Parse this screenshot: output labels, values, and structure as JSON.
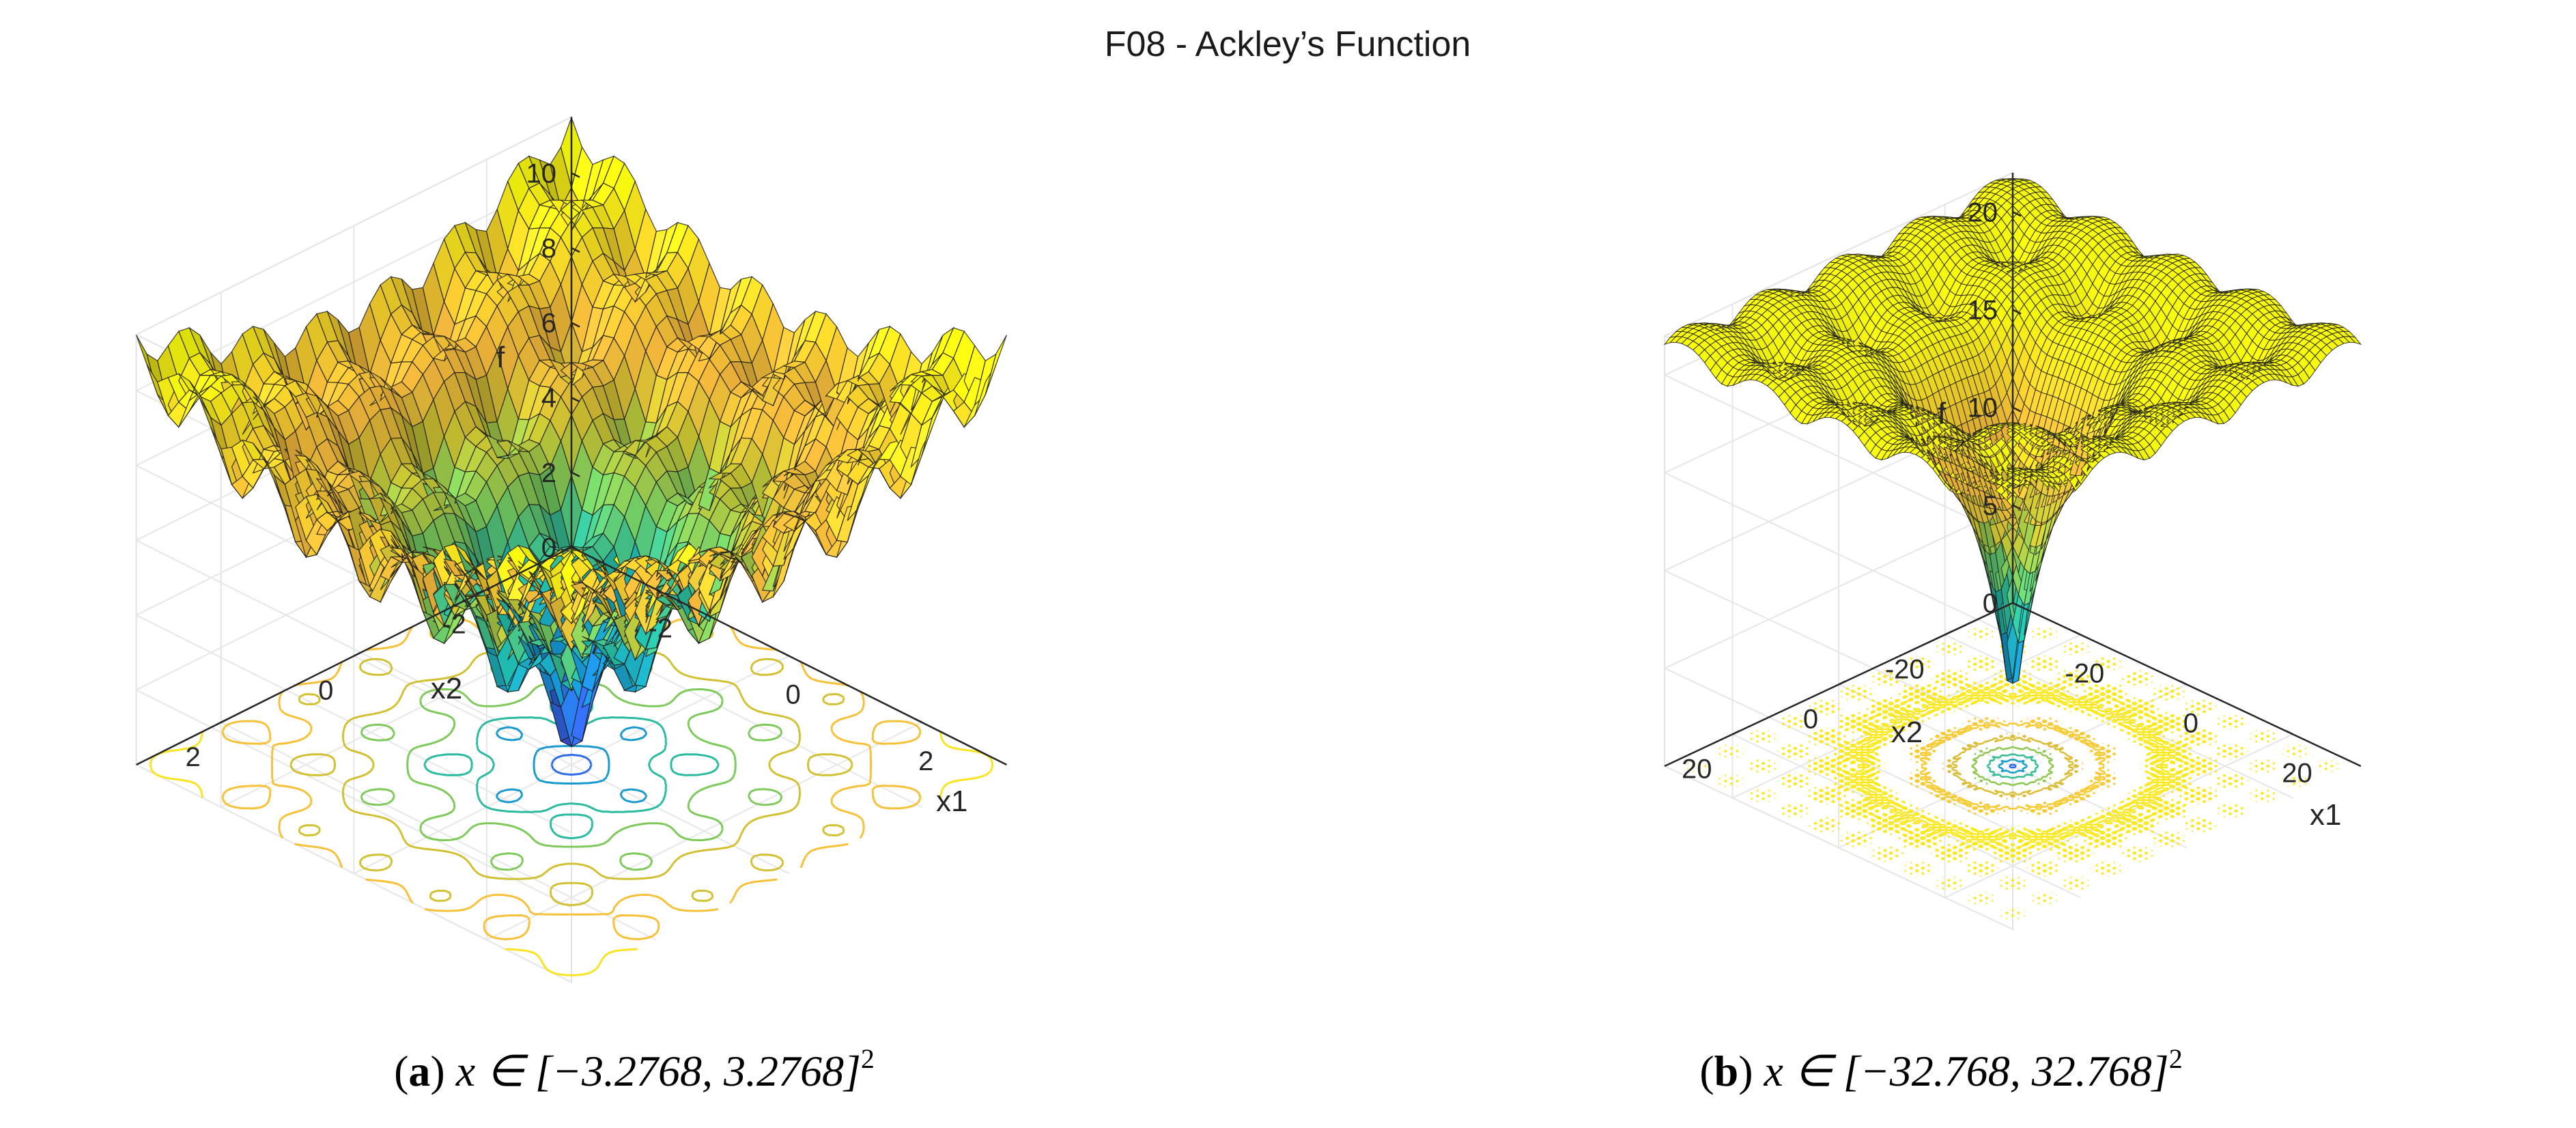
{
  "figure_title": "F08 - Ackley’s Function",
  "colormap": [
    "#3e26a8",
    "#2f6ae8",
    "#1696d2",
    "#1fb8a8",
    "#6fcb63",
    "#c8c230",
    "#f5b83c",
    "#fad92a",
    "#f9fb0e"
  ],
  "chart_data": [
    {
      "type": "surface",
      "function": "ackley",
      "panel_label": "a",
      "caption_text": "x ∈ [−3.2768, 3.2768]",
      "caption_sup": "2",
      "x_range": [
        -3.2768,
        3.2768
      ],
      "y_range": [
        -3.2768,
        3.2768
      ],
      "z_range": [
        0,
        11.5
      ],
      "grid_n": 41,
      "xlabel": "x1",
      "ylabel": "x2",
      "zlabel": "f",
      "xticks": [
        -2,
        0,
        2
      ],
      "xtick_labels": [
        "-2",
        "0",
        "2"
      ],
      "yticks": [
        -2,
        0,
        2
      ],
      "ytick_labels": [
        "-2",
        "0",
        "2"
      ],
      "zticks": [
        0,
        2,
        4,
        6,
        8,
        10
      ],
      "ztick_labels": [
        "0",
        "2",
        "4",
        "6",
        "8",
        "10"
      ],
      "contour_levels": [
        1.5,
        3,
        4.5,
        6,
        7.5,
        9,
        10.5
      ],
      "global_minimum": {
        "x1": 0,
        "x2": 0,
        "f": 0
      }
    },
    {
      "type": "surface",
      "function": "ackley",
      "panel_label": "b",
      "caption_text": "x ∈ [−32.768, 32.768]",
      "caption_sup": "2",
      "x_range": [
        -32.768,
        32.768
      ],
      "y_range": [
        -32.768,
        32.768
      ],
      "z_range": [
        0,
        22
      ],
      "grid_n": 61,
      "xlabel": "x1",
      "ylabel": "x2",
      "zlabel": "f",
      "xticks": [
        -20,
        0,
        20
      ],
      "xtick_labels": [
        "-20",
        "0",
        "20"
      ],
      "yticks": [
        -20,
        0,
        20
      ],
      "ytick_labels": [
        "-20",
        "0",
        "20"
      ],
      "zticks": [
        0,
        5,
        10,
        15,
        20
      ],
      "ztick_labels": [
        "0",
        "5",
        "10",
        "15",
        "20"
      ],
      "contour_levels": [
        3,
        6,
        9,
        12,
        15,
        18,
        20.5
      ],
      "global_minimum": {
        "x1": 0,
        "x2": 0,
        "f": 0
      }
    }
  ]
}
